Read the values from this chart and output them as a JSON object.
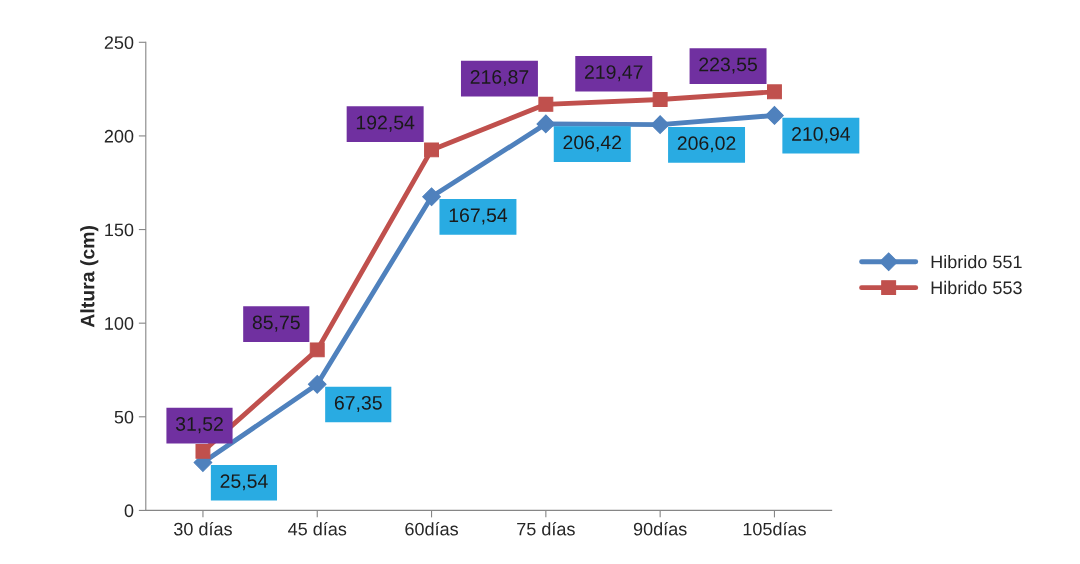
{
  "chart_data": {
    "type": "line",
    "ylabel": "Altura (cm)",
    "categories": [
      "30 días",
      "45 días",
      "60días",
      "75 días",
      "90días",
      "105días"
    ],
    "series": [
      {
        "name": "Hibrido 551",
        "color": "#4f81bd",
        "marker": "diamond",
        "values": [
          25.54,
          67.35,
          167.54,
          206.42,
          206.02,
          210.94
        ],
        "value_labels": [
          "25,54",
          "67,35",
          "167,54",
          "206,42",
          "206,02",
          "210,94"
        ]
      },
      {
        "name": "Hibrido 553",
        "color": "#c0504d",
        "marker": "square",
        "values": [
          31.52,
          85.75,
          192.54,
          216.87,
          219.47,
          223.55
        ],
        "value_labels": [
          "31,52",
          "85,75",
          "192,54",
          "216,87",
          "219,47",
          "223,55"
        ]
      }
    ],
    "ylim": [
      0,
      250
    ],
    "yticks": [
      0,
      50,
      100,
      150,
      200,
      250
    ],
    "grid": false,
    "legend": "right"
  }
}
